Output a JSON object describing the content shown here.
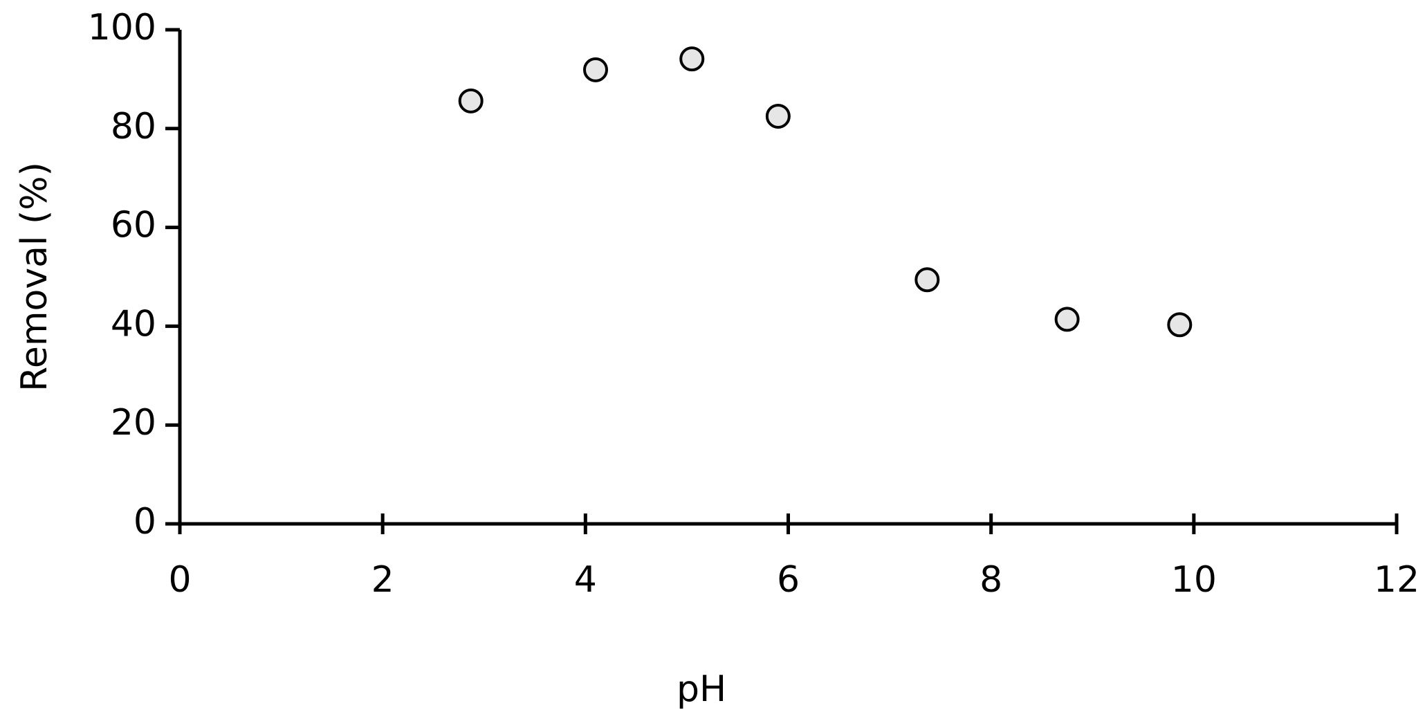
{
  "chart_data": {
    "type": "scatter",
    "x_label": "pH",
    "y_label": "Removal (%)",
    "series": [
      {
        "name": "Removal",
        "color": "#e6e6e6",
        "x": [
          2.87,
          4.1,
          5.05,
          5.9,
          7.37,
          8.75,
          9.86
        ],
        "values": [
          85.6,
          91.9,
          94.1,
          82.5,
          49.4,
          41.4,
          40.3
        ]
      }
    ],
    "xlim": [
      0,
      12
    ],
    "xticks": [
      0,
      2,
      4,
      6,
      8,
      10,
      12
    ],
    "ylim": [
      0,
      100
    ],
    "yticks": [
      0,
      20,
      40,
      60,
      80,
      100
    ]
  }
}
